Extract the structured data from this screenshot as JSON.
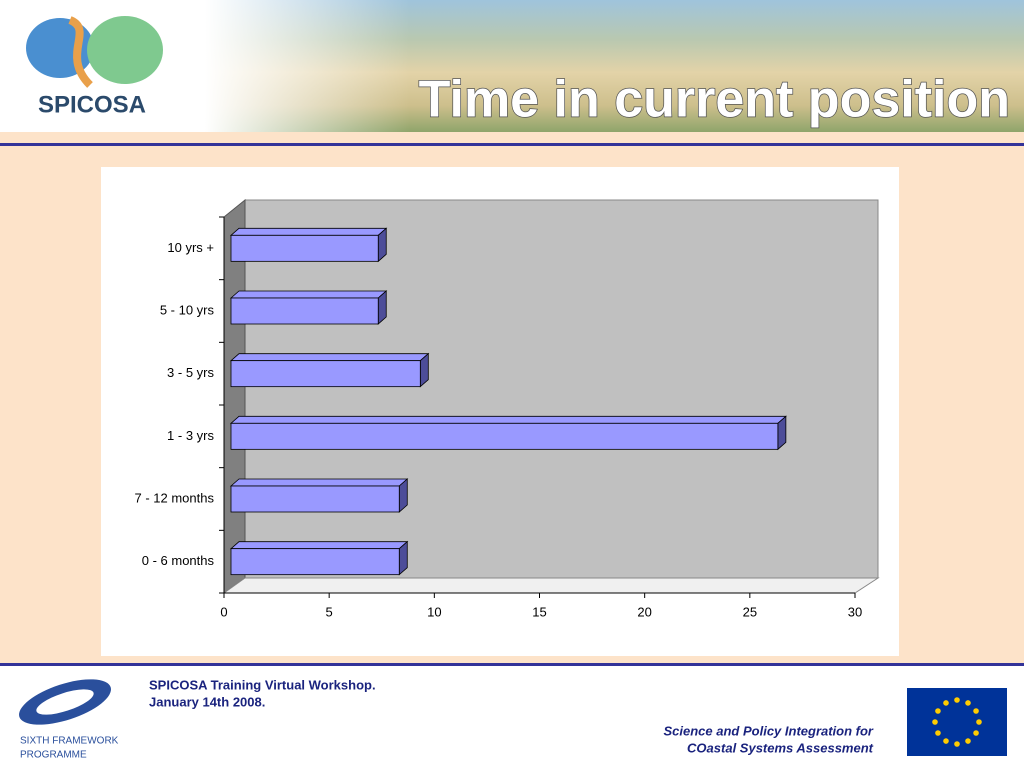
{
  "header": {
    "logo_text": "SPICOSA",
    "title": "Time in current position"
  },
  "footer": {
    "workshop": [
      "SPICOSA Training Virtual Workshop.",
      "January 14th 2008."
    ],
    "tagline": [
      "Science and Policy Integration for",
      "COastal Systems Assessment"
    ],
    "programme": [
      "SIXTH FRAMEWORK",
      "PROGRAMME"
    ]
  },
  "chart_data": {
    "type": "bar",
    "orientation": "horizontal",
    "categories": [
      "0 - 6 months",
      "7 - 12 months",
      "1 - 3 yrs",
      "3 - 5 yrs",
      "5 - 10 yrs",
      "10 yrs +"
    ],
    "values": [
      8,
      8,
      26,
      9,
      7,
      7
    ],
    "color": "#9999ff",
    "xlim": [
      0,
      30
    ],
    "xticks": [
      0,
      5,
      10,
      15,
      20,
      25,
      30
    ],
    "grid": false
  }
}
